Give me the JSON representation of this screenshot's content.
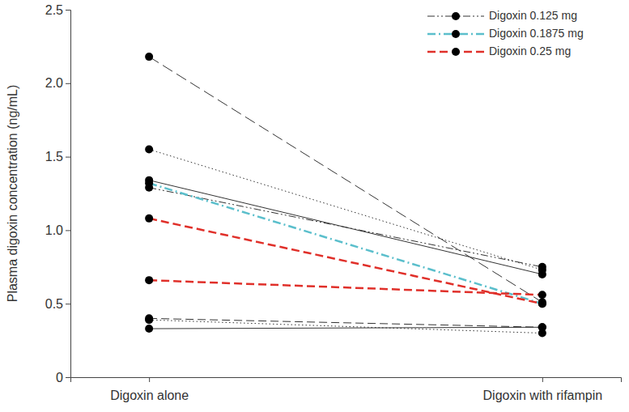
{
  "chart_data": {
    "type": "line",
    "y_label": "Plasma digoxin concentration (ng/mL)",
    "categories": [
      "Digoxin alone",
      "Digoxin with rifampin"
    ],
    "ylim": [
      0,
      2.5
    ],
    "yticks": [
      0,
      0.5,
      {
        "value": 1,
        "label": "1.0"
      },
      1.5,
      {
        "value": 2,
        "label": "2.0"
      },
      2.5
    ],
    "legend": "upper right",
    "marker": "circle",
    "series": [
      {
        "name": "Digoxin 0.125 mg",
        "color": "#333333",
        "line_style": "dash-dot-dot",
        "values": [
          1.29,
          0.75
        ]
      },
      {
        "name": "Digoxin 0.125 mg",
        "color": "#333333",
        "line_style": "long-dashed",
        "values": [
          2.18,
          0.51
        ]
      },
      {
        "name": "Digoxin 0.125 mg",
        "color": "#333333",
        "line_style": "dotted",
        "values": [
          1.55,
          0.73
        ]
      },
      {
        "name": "Digoxin 0.125 mg",
        "color": "#333333",
        "line_style": "solid",
        "values": [
          1.34,
          0.7
        ]
      },
      {
        "name": "Digoxin 0.125 mg",
        "color": "#333333",
        "line_style": "dashed",
        "values": [
          0.4,
          0.34
        ]
      },
      {
        "name": "Digoxin 0.125 mg",
        "color": "#333333",
        "line_style": "solid",
        "values": [
          0.33,
          0.34
        ]
      },
      {
        "name": "Digoxin 0.125 mg",
        "color": "#333333",
        "line_style": "dotted",
        "values": [
          0.39,
          0.3
        ]
      },
      {
        "name": "Digoxin 0.1875 mg",
        "color": "#5bbfcc",
        "line_style": "dash-dot",
        "values": [
          1.32,
          0.5
        ]
      },
      {
        "name": "Digoxin 0.25 mg",
        "color": "#e0302a",
        "line_style": "dashed",
        "values": [
          1.08,
          0.5
        ]
      },
      {
        "name": "Digoxin 0.25 mg",
        "color": "#e0302a",
        "line_style": "dashed",
        "values": [
          0.66,
          0.56
        ]
      }
    ]
  }
}
